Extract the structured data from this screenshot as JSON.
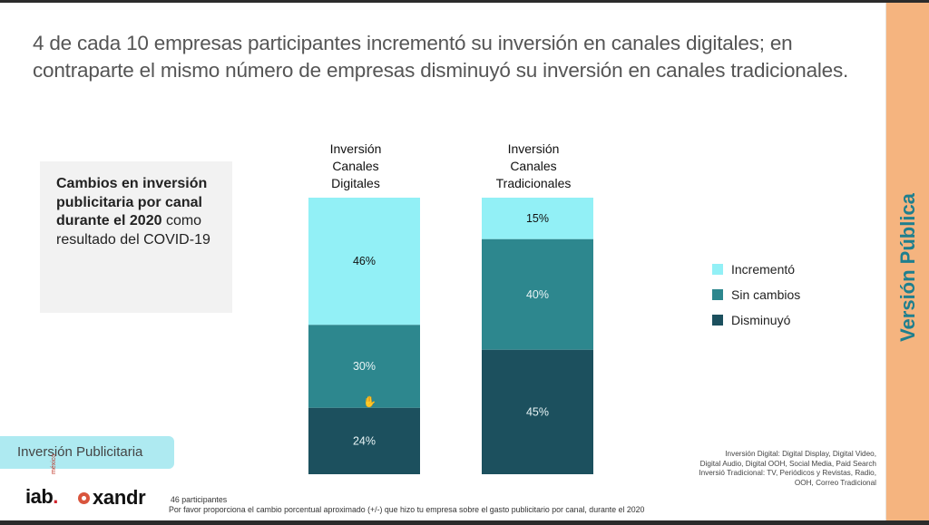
{
  "headline": "4 de cada 10 empresas participantes incrementó su inversión en canales digitales; en contraparte el mismo número de empresas disminuyó su inversión en canales tradicionales.",
  "side_band": {
    "label": "Versión Pública",
    "color": "#f5b47f",
    "text_color": "#1f7f8e"
  },
  "info_box": {
    "bold_text": "Cambios en inversión publicitaria por canal durante el 2020",
    "regular_text": " como resultado del COVID-19"
  },
  "section_tag": "Inversión  Publicitaria",
  "logos": {
    "iab": "iab",
    "iab_dot": ".",
    "iab_sub": "méxico",
    "xandr": "xandr"
  },
  "footer": {
    "participants": "46 participantes",
    "question": "Por favor proporciona el cambio porcentual aproximado (+/-) que hizo tu empresa sobre el gasto publicitario por canal, durante el 2020"
  },
  "channel_notes": [
    "Inversión  Digital: Digital Display, Digital Video,",
    "Digital Audio, Digital OOH, Social Media, Paid Search",
    "Inversió  Tradicional: TV, Periódicos y Revistas, Radio,",
    "OOH, Correo Tradicional"
  ],
  "chart_data": {
    "type": "bar",
    "stacked": true,
    "normalized": true,
    "categories": [
      "Inversión Canales Digitales",
      "Inversión Canales Tradicionales"
    ],
    "category_title_lines": [
      [
        "Inversión",
        "Canales",
        "Digitales"
      ],
      [
        "Inversión",
        "Canales",
        "Tradicionales"
      ]
    ],
    "series": [
      {
        "name": "Incrementó",
        "color": "#92f0f6",
        "label_color": "#111111",
        "values": [
          46,
          15
        ]
      },
      {
        "name": "Sin cambios",
        "color": "#2d878e",
        "label_color": "#e8f4f5",
        "values": [
          30,
          40
        ]
      },
      {
        "name": "Disminuyó",
        "color": "#1c505e",
        "label_color": "#e8f4f5",
        "values": [
          24,
          45
        ]
      }
    ],
    "value_suffix": "%",
    "ylim": [
      0,
      100
    ],
    "legend_position": "right",
    "grid": false,
    "title": "",
    "xlabel": "",
    "ylabel": ""
  }
}
